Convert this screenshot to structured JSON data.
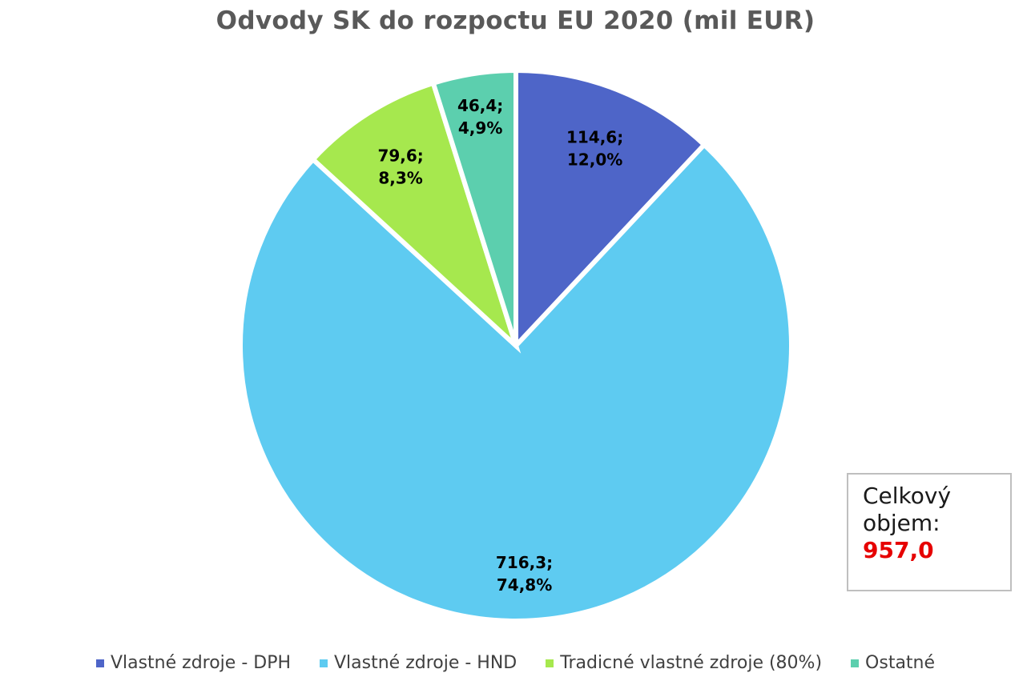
{
  "chart_data": {
    "type": "pie",
    "title": "Odvody SK do rozpoctu EU 2020 (mil EUR)",
    "slices": [
      {
        "name": "Vlastné zdroje - DPH",
        "value": 114.6,
        "percent": 12.0,
        "label_value": "114,6;",
        "label_percent": "12,0%",
        "color": "#4e65c8"
      },
      {
        "name": "Vlastné zdroje - HND",
        "value": 716.3,
        "percent": 74.8,
        "label_value": "716,3;",
        "label_percent": "74,8%",
        "color": "#5ecbf1"
      },
      {
        "name": "Tradicné vlastné zdroje (80%)",
        "value": 79.6,
        "percent": 8.3,
        "label_value": "79,6;",
        "label_percent": "8,3%",
        "color": "#a6e84e"
      },
      {
        "name": "Ostatné",
        "value": 46.4,
        "percent": 4.9,
        "label_value": "46,4;",
        "label_percent": "4,9%",
        "color": "#5ccfae"
      }
    ],
    "legend_position": "bottom",
    "start_angle": "top, clockwise"
  },
  "total_box": {
    "line1": "Celkový",
    "line2": "objem:",
    "value": "957,0",
    "value_color": "#e60000"
  }
}
